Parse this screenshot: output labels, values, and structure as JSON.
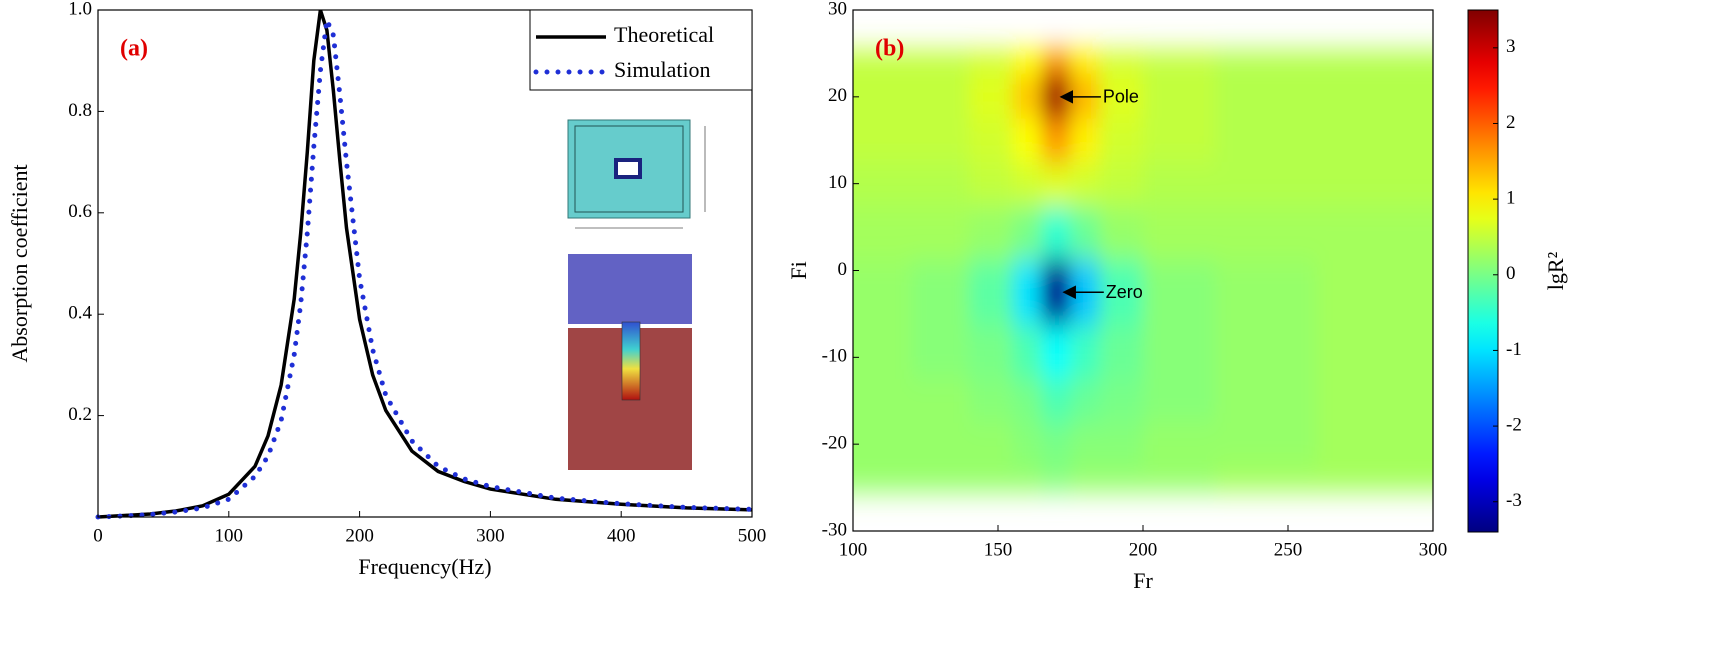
{
  "chart_data": [
    {
      "type": "line",
      "label": "(a)",
      "xlabel": "Frequency(Hz)",
      "ylabel": "Absorption coefficient",
      "xlim": [
        0,
        500
      ],
      "ylim": [
        0,
        1
      ],
      "xticks": [
        0,
        100,
        200,
        300,
        400,
        500
      ],
      "yticks": [
        0.2,
        0.4,
        0.6,
        0.8,
        {
          "value": 1,
          "label": "1.0"
        }
      ],
      "legend": "upper right",
      "x": [
        0,
        20,
        40,
        60,
        80,
        100,
        120,
        130,
        140,
        150,
        155,
        160,
        165,
        170,
        175,
        180,
        185,
        190,
        200,
        210,
        220,
        240,
        260,
        280,
        300,
        350,
        400,
        450,
        500
      ],
      "series": [
        {
          "name": "Theoretical",
          "color": "#000000",
          "style": "solid",
          "values": [
            0.0,
            0.003,
            0.006,
            0.012,
            0.022,
            0.045,
            0.1,
            0.16,
            0.26,
            0.43,
            0.56,
            0.72,
            0.9,
            1.0,
            0.96,
            0.84,
            0.7,
            0.57,
            0.39,
            0.28,
            0.21,
            0.13,
            0.09,
            0.07,
            0.055,
            0.035,
            0.025,
            0.018,
            0.014
          ]
        },
        {
          "name": "Simulation",
          "color": "#1f2fd6",
          "style": "dotted",
          "values": [
            0.0,
            0.002,
            0.005,
            0.01,
            0.018,
            0.035,
            0.08,
            0.12,
            0.19,
            0.32,
            0.42,
            0.56,
            0.73,
            0.88,
            0.98,
            0.95,
            0.83,
            0.7,
            0.47,
            0.33,
            0.24,
            0.15,
            0.1,
            0.075,
            0.06,
            0.037,
            0.026,
            0.019,
            0.015
          ]
        }
      ]
    },
    {
      "type": "heatmap",
      "label": "(b)",
      "xlabel": "Fr",
      "ylabel": "Fi",
      "xlim": [
        100,
        300
      ],
      "ylim": [
        -30,
        30
      ],
      "xticks": [
        100,
        150,
        200,
        250,
        300
      ],
      "yticks": [
        -30,
        -20,
        -10,
        0,
        10,
        20,
        30
      ],
      "colormap": "jet",
      "zlim": [
        -3.4,
        3.5
      ],
      "zticks": [
        -3,
        -2,
        -1,
        0,
        1,
        2,
        3
      ],
      "colorbar_label": "lgR²",
      "x": [
        110,
        130,
        150,
        160,
        170,
        180,
        190,
        210,
        240,
        280
      ],
      "y": [
        25,
        20,
        15,
        10,
        5,
        -2.5,
        -10,
        -15,
        -20,
        -25
      ],
      "z": [
        [
          0.5,
          0.5,
          0.6,
          0.9,
          1.6,
          1.0,
          0.6,
          0.5,
          0.4,
          0.4
        ],
        [
          0.5,
          0.5,
          0.7,
          1.3,
          3.3,
          1.4,
          0.7,
          0.5,
          0.4,
          0.4
        ],
        [
          0.5,
          0.5,
          0.6,
          0.9,
          1.6,
          1.0,
          0.6,
          0.5,
          0.4,
          0.4
        ],
        [
          0.4,
          0.4,
          0.5,
          0.6,
          0.7,
          0.6,
          0.5,
          0.4,
          0.4,
          0.4
        ],
        [
          0.3,
          0.3,
          0.2,
          0.0,
          -0.5,
          -0.1,
          0.2,
          0.3,
          0.3,
          0.3
        ],
        [
          0.2,
          0.1,
          -0.2,
          -1.0,
          -3.3,
          -1.2,
          -0.3,
          0.1,
          0.2,
          0.3
        ],
        [
          0.2,
          0.1,
          0.0,
          -0.3,
          -0.8,
          -0.4,
          -0.1,
          0.1,
          0.2,
          0.3
        ],
        [
          0.2,
          0.2,
          0.1,
          0.0,
          -0.3,
          -0.1,
          0.0,
          0.1,
          0.2,
          0.3
        ],
        [
          0.2,
          0.2,
          0.2,
          0.1,
          0.0,
          0.1,
          0.1,
          0.2,
          0.2,
          0.3
        ],
        [
          0.2,
          0.2,
          0.2,
          0.2,
          0.1,
          0.2,
          0.2,
          0.2,
          0.3,
          0.3
        ]
      ],
      "annotations": [
        {
          "text": "Pole",
          "x": 171,
          "y": 20
        },
        {
          "text": "Zero",
          "x": 172,
          "y": -2.5
        }
      ]
    }
  ]
}
